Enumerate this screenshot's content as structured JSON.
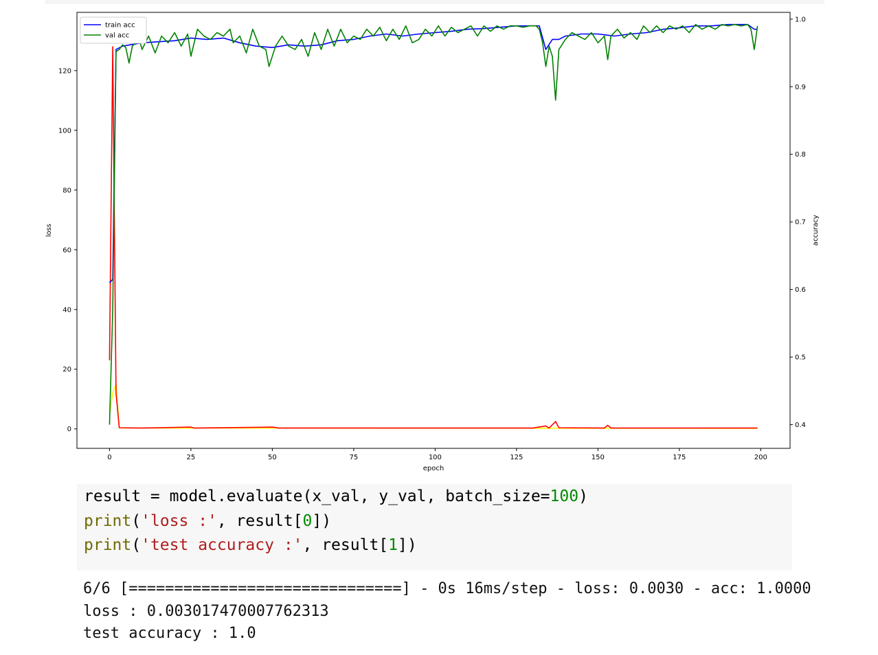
{
  "chart_data": {
    "type": "line",
    "title": "",
    "xlabel": "epoch",
    "ylabel_left": "loss",
    "ylabel_right": "accuracy",
    "xlim": [
      -10,
      209
    ],
    "ylim_left": [
      -6.5,
      139.5
    ],
    "ylim_right": [
      0.365,
      1.01
    ],
    "x_ticks": [
      0,
      25,
      50,
      75,
      100,
      125,
      150,
      175,
      200
    ],
    "y_ticks_left": [
      0,
      20,
      40,
      60,
      80,
      100,
      120
    ],
    "y_ticks_right": [
      0.4,
      0.5,
      0.6,
      0.7,
      0.8,
      0.9,
      1.0
    ],
    "legend": {
      "placement": "top-left",
      "entries": [
        {
          "label": "train acc",
          "color": "#0000ff"
        },
        {
          "label": "val acc",
          "color": "#008000"
        }
      ]
    },
    "series": [
      {
        "key": "train_loss",
        "axis": "left",
        "color": "#ffff00",
        "points": [
          [
            0,
            5
          ],
          [
            1,
            12
          ],
          [
            2,
            15
          ],
          [
            3,
            0.5
          ],
          [
            4,
            0.3
          ],
          [
            199,
            0.2
          ]
        ]
      },
      {
        "key": "val_loss",
        "axis": "left",
        "color": "#ff0000",
        "points": [
          [
            0,
            23
          ],
          [
            1,
            128
          ],
          [
            2,
            12
          ],
          [
            3,
            0.4
          ],
          [
            10,
            0.3
          ],
          [
            25,
            0.6
          ],
          [
            26,
            0.3
          ],
          [
            50,
            0.6
          ],
          [
            52,
            0.3
          ],
          [
            100,
            0.3
          ],
          [
            130,
            0.3
          ],
          [
            134,
            1.0
          ],
          [
            135,
            0.3
          ],
          [
            137,
            2.5
          ],
          [
            138,
            0.4
          ],
          [
            152,
            0.3
          ],
          [
            153,
            1.2
          ],
          [
            154,
            0.3
          ],
          [
            199,
            0.3
          ]
        ]
      },
      {
        "name": "train acc",
        "axis": "right",
        "color": "#0000ff",
        "points": [
          [
            0,
            0.61
          ],
          [
            1,
            0.615
          ],
          [
            2,
            0.955
          ],
          [
            4,
            0.96
          ],
          [
            10,
            0.965
          ],
          [
            20,
            0.968
          ],
          [
            25,
            0.972
          ],
          [
            30,
            0.97
          ],
          [
            35,
            0.972
          ],
          [
            40,
            0.965
          ],
          [
            45,
            0.96
          ],
          [
            50,
            0.958
          ],
          [
            55,
            0.962
          ],
          [
            60,
            0.96
          ],
          [
            65,
            0.962
          ],
          [
            70,
            0.968
          ],
          [
            75,
            0.97
          ],
          [
            80,
            0.975
          ],
          [
            85,
            0.978
          ],
          [
            90,
            0.975
          ],
          [
            95,
            0.978
          ],
          [
            100,
            0.98
          ],
          [
            105,
            0.982
          ],
          [
            110,
            0.985
          ],
          [
            115,
            0.986
          ],
          [
            120,
            0.988
          ],
          [
            125,
            0.99
          ],
          [
            132,
            0.99
          ],
          [
            134,
            0.955
          ],
          [
            136,
            0.97
          ],
          [
            138,
            0.97
          ],
          [
            140,
            0.975
          ],
          [
            145,
            0.978
          ],
          [
            150,
            0.978
          ],
          [
            155,
            0.975
          ],
          [
            160,
            0.978
          ],
          [
            165,
            0.98
          ],
          [
            170,
            0.985
          ],
          [
            175,
            0.987
          ],
          [
            180,
            0.99
          ],
          [
            185,
            0.99
          ],
          [
            190,
            0.992
          ],
          [
            196,
            0.992
          ],
          [
            198,
            0.985
          ],
          [
            199,
            0.985
          ]
        ]
      },
      {
        "name": "val acc",
        "axis": "right",
        "color": "#008000",
        "points": [
          [
            0,
            0.4
          ],
          [
            1,
            0.57
          ],
          [
            2,
            0.952
          ],
          [
            3,
            0.955
          ],
          [
            4,
            0.962
          ],
          [
            5,
            0.958
          ],
          [
            6,
            0.935
          ],
          [
            7,
            0.96
          ],
          [
            8,
            0.965
          ],
          [
            9,
            0.972
          ],
          [
            10,
            0.955
          ],
          [
            12,
            0.975
          ],
          [
            14,
            0.95
          ],
          [
            16,
            0.975
          ],
          [
            18,
            0.965
          ],
          [
            20,
            0.98
          ],
          [
            22,
            0.96
          ],
          [
            24,
            0.978
          ],
          [
            25,
            0.945
          ],
          [
            27,
            0.985
          ],
          [
            29,
            0.975
          ],
          [
            31,
            0.97
          ],
          [
            33,
            0.98
          ],
          [
            35,
            0.975
          ],
          [
            37,
            0.985
          ],
          [
            38,
            0.965
          ],
          [
            40,
            0.975
          ],
          [
            42,
            0.95
          ],
          [
            44,
            0.985
          ],
          [
            46,
            0.96
          ],
          [
            48,
            0.955
          ],
          [
            49,
            0.93
          ],
          [
            51,
            0.96
          ],
          [
            53,
            0.975
          ],
          [
            55,
            0.96
          ],
          [
            57,
            0.955
          ],
          [
            59,
            0.97
          ],
          [
            61,
            0.945
          ],
          [
            63,
            0.98
          ],
          [
            65,
            0.955
          ],
          [
            67,
            0.985
          ],
          [
            69,
            0.96
          ],
          [
            71,
            0.985
          ],
          [
            73,
            0.965
          ],
          [
            75,
            0.975
          ],
          [
            77,
            0.97
          ],
          [
            79,
            0.985
          ],
          [
            81,
            0.975
          ],
          [
            83,
            0.988
          ],
          [
            85,
            0.968
          ],
          [
            87,
            0.985
          ],
          [
            89,
            0.97
          ],
          [
            91,
            0.99
          ],
          [
            93,
            0.965
          ],
          [
            95,
            0.97
          ],
          [
            97,
            0.985
          ],
          [
            99,
            0.975
          ],
          [
            101,
            0.99
          ],
          [
            103,
            0.975
          ],
          [
            105,
            0.988
          ],
          [
            107,
            0.98
          ],
          [
            109,
            0.985
          ],
          [
            111,
            0.99
          ],
          [
            113,
            0.975
          ],
          [
            115,
            0.99
          ],
          [
            117,
            0.982
          ],
          [
            119,
            0.99
          ],
          [
            121,
            0.985
          ],
          [
            123,
            0.99
          ],
          [
            125,
            0.99
          ],
          [
            127,
            0.988
          ],
          [
            129,
            0.99
          ],
          [
            131,
            0.99
          ],
          [
            132,
            0.985
          ],
          [
            133,
            0.965
          ],
          [
            134,
            0.93
          ],
          [
            135,
            0.96
          ],
          [
            136,
            0.945
          ],
          [
            137,
            0.88
          ],
          [
            138,
            0.955
          ],
          [
            140,
            0.97
          ],
          [
            142,
            0.98
          ],
          [
            144,
            0.975
          ],
          [
            146,
            0.97
          ],
          [
            148,
            0.98
          ],
          [
            150,
            0.965
          ],
          [
            152,
            0.975
          ],
          [
            153,
            0.94
          ],
          [
            154,
            0.975
          ],
          [
            156,
            0.985
          ],
          [
            158,
            0.972
          ],
          [
            160,
            0.98
          ],
          [
            162,
            0.97
          ],
          [
            164,
            0.99
          ],
          [
            166,
            0.98
          ],
          [
            168,
            0.99
          ],
          [
            170,
            0.98
          ],
          [
            172,
            0.99
          ],
          [
            174,
            0.985
          ],
          [
            176,
            0.99
          ],
          [
            178,
            0.98
          ],
          [
            180,
            0.992
          ],
          [
            182,
            0.985
          ],
          [
            184,
            0.99
          ],
          [
            186,
            0.985
          ],
          [
            188,
            0.992
          ],
          [
            190,
            0.99
          ],
          [
            192,
            0.992
          ],
          [
            194,
            0.99
          ],
          [
            196,
            0.992
          ],
          [
            197,
            0.985
          ],
          [
            198,
            0.955
          ],
          [
            199,
            0.99
          ]
        ]
      }
    ]
  },
  "code": {
    "line1": {
      "a": "result = model.evaluate(x_val, y_val, batch_size=",
      "b": "100",
      "c": ")"
    },
    "line2": {
      "a": "print",
      "b": "(",
      "c": "'loss :'",
      "d": ", result[",
      "e": "0",
      "f": "])"
    },
    "line3": {
      "a": "print",
      "b": "(",
      "c": "'test accuracy :'",
      "d": ", result[",
      "e": "1",
      "f": "])"
    }
  },
  "output": {
    "line1": "6/6 [==============================] - 0s 16ms/step - loss: 0.0030 - acc: 1.0000",
    "line2": "loss : 0.003017470007762313",
    "line3": "test accuracy : 1.0"
  }
}
